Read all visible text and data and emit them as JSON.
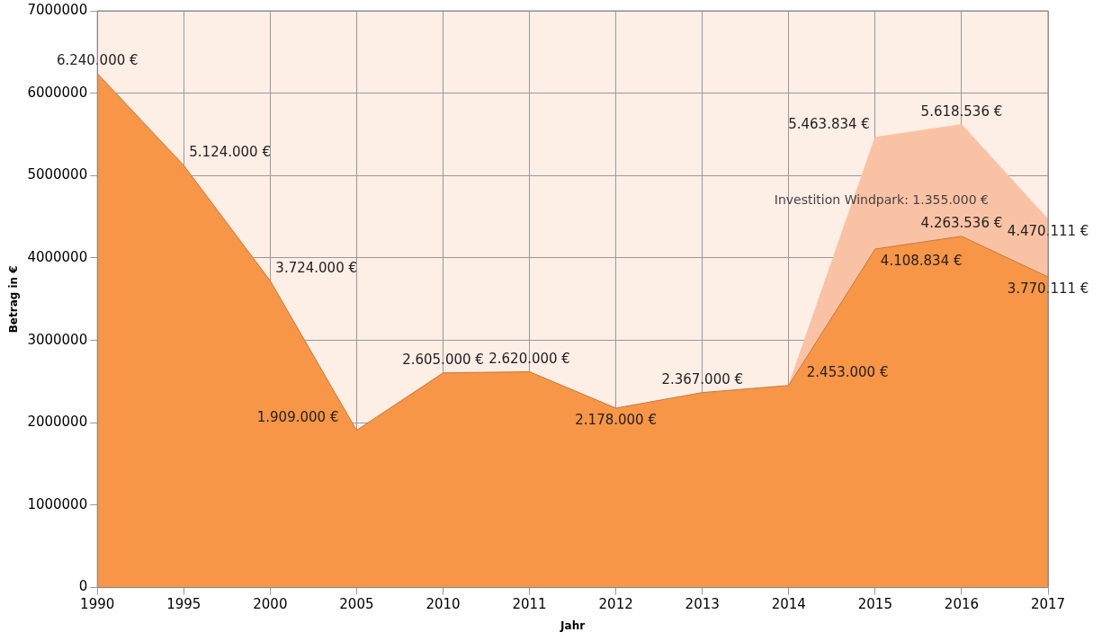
{
  "chart_data": {
    "type": "area",
    "xlabel": "Jahr",
    "ylabel": "Betrag in €",
    "categories": [
      "1990",
      "1995",
      "2000",
      "2005",
      "2010",
      "2011",
      "2012",
      "2013",
      "2014",
      "2015",
      "2016",
      "2017"
    ],
    "series": [
      {
        "color": "#f79646",
        "values": [
          6240000,
          5124000,
          3724000,
          1909000,
          2605000,
          2620000,
          2178000,
          2367000,
          2453000,
          4108834,
          4263536,
          3770111
        ],
        "value_labels": [
          "6.240.000 €",
          "5.124.000 €",
          "3.724.000 €",
          "1.909.000 €",
          "2.605.000 €",
          "2.620.000 €",
          "2.178.000 €",
          "2.367.000 €",
          "2.453.000 €",
          "4.108.834 €",
          "4.263.536 €",
          "3.770.111 €"
        ]
      },
      {
        "color": "#fac2a4",
        "values": [
          null,
          null,
          null,
          null,
          null,
          null,
          null,
          null,
          2453000,
          5463834,
          5618536,
          4470111
        ],
        "value_labels": [
          null,
          null,
          null,
          null,
          null,
          null,
          null,
          null,
          null,
          "5.463.834 €",
          "5.618.536 €",
          "4.470.111 €"
        ]
      }
    ],
    "ylim": [
      0,
      7000000
    ],
    "yticks": [
      0,
      1000000,
      2000000,
      3000000,
      4000000,
      5000000,
      6000000,
      7000000
    ],
    "grid": true,
    "legend": false,
    "annotations": [
      "Investition Windpark: 1.355.000 €"
    ]
  }
}
